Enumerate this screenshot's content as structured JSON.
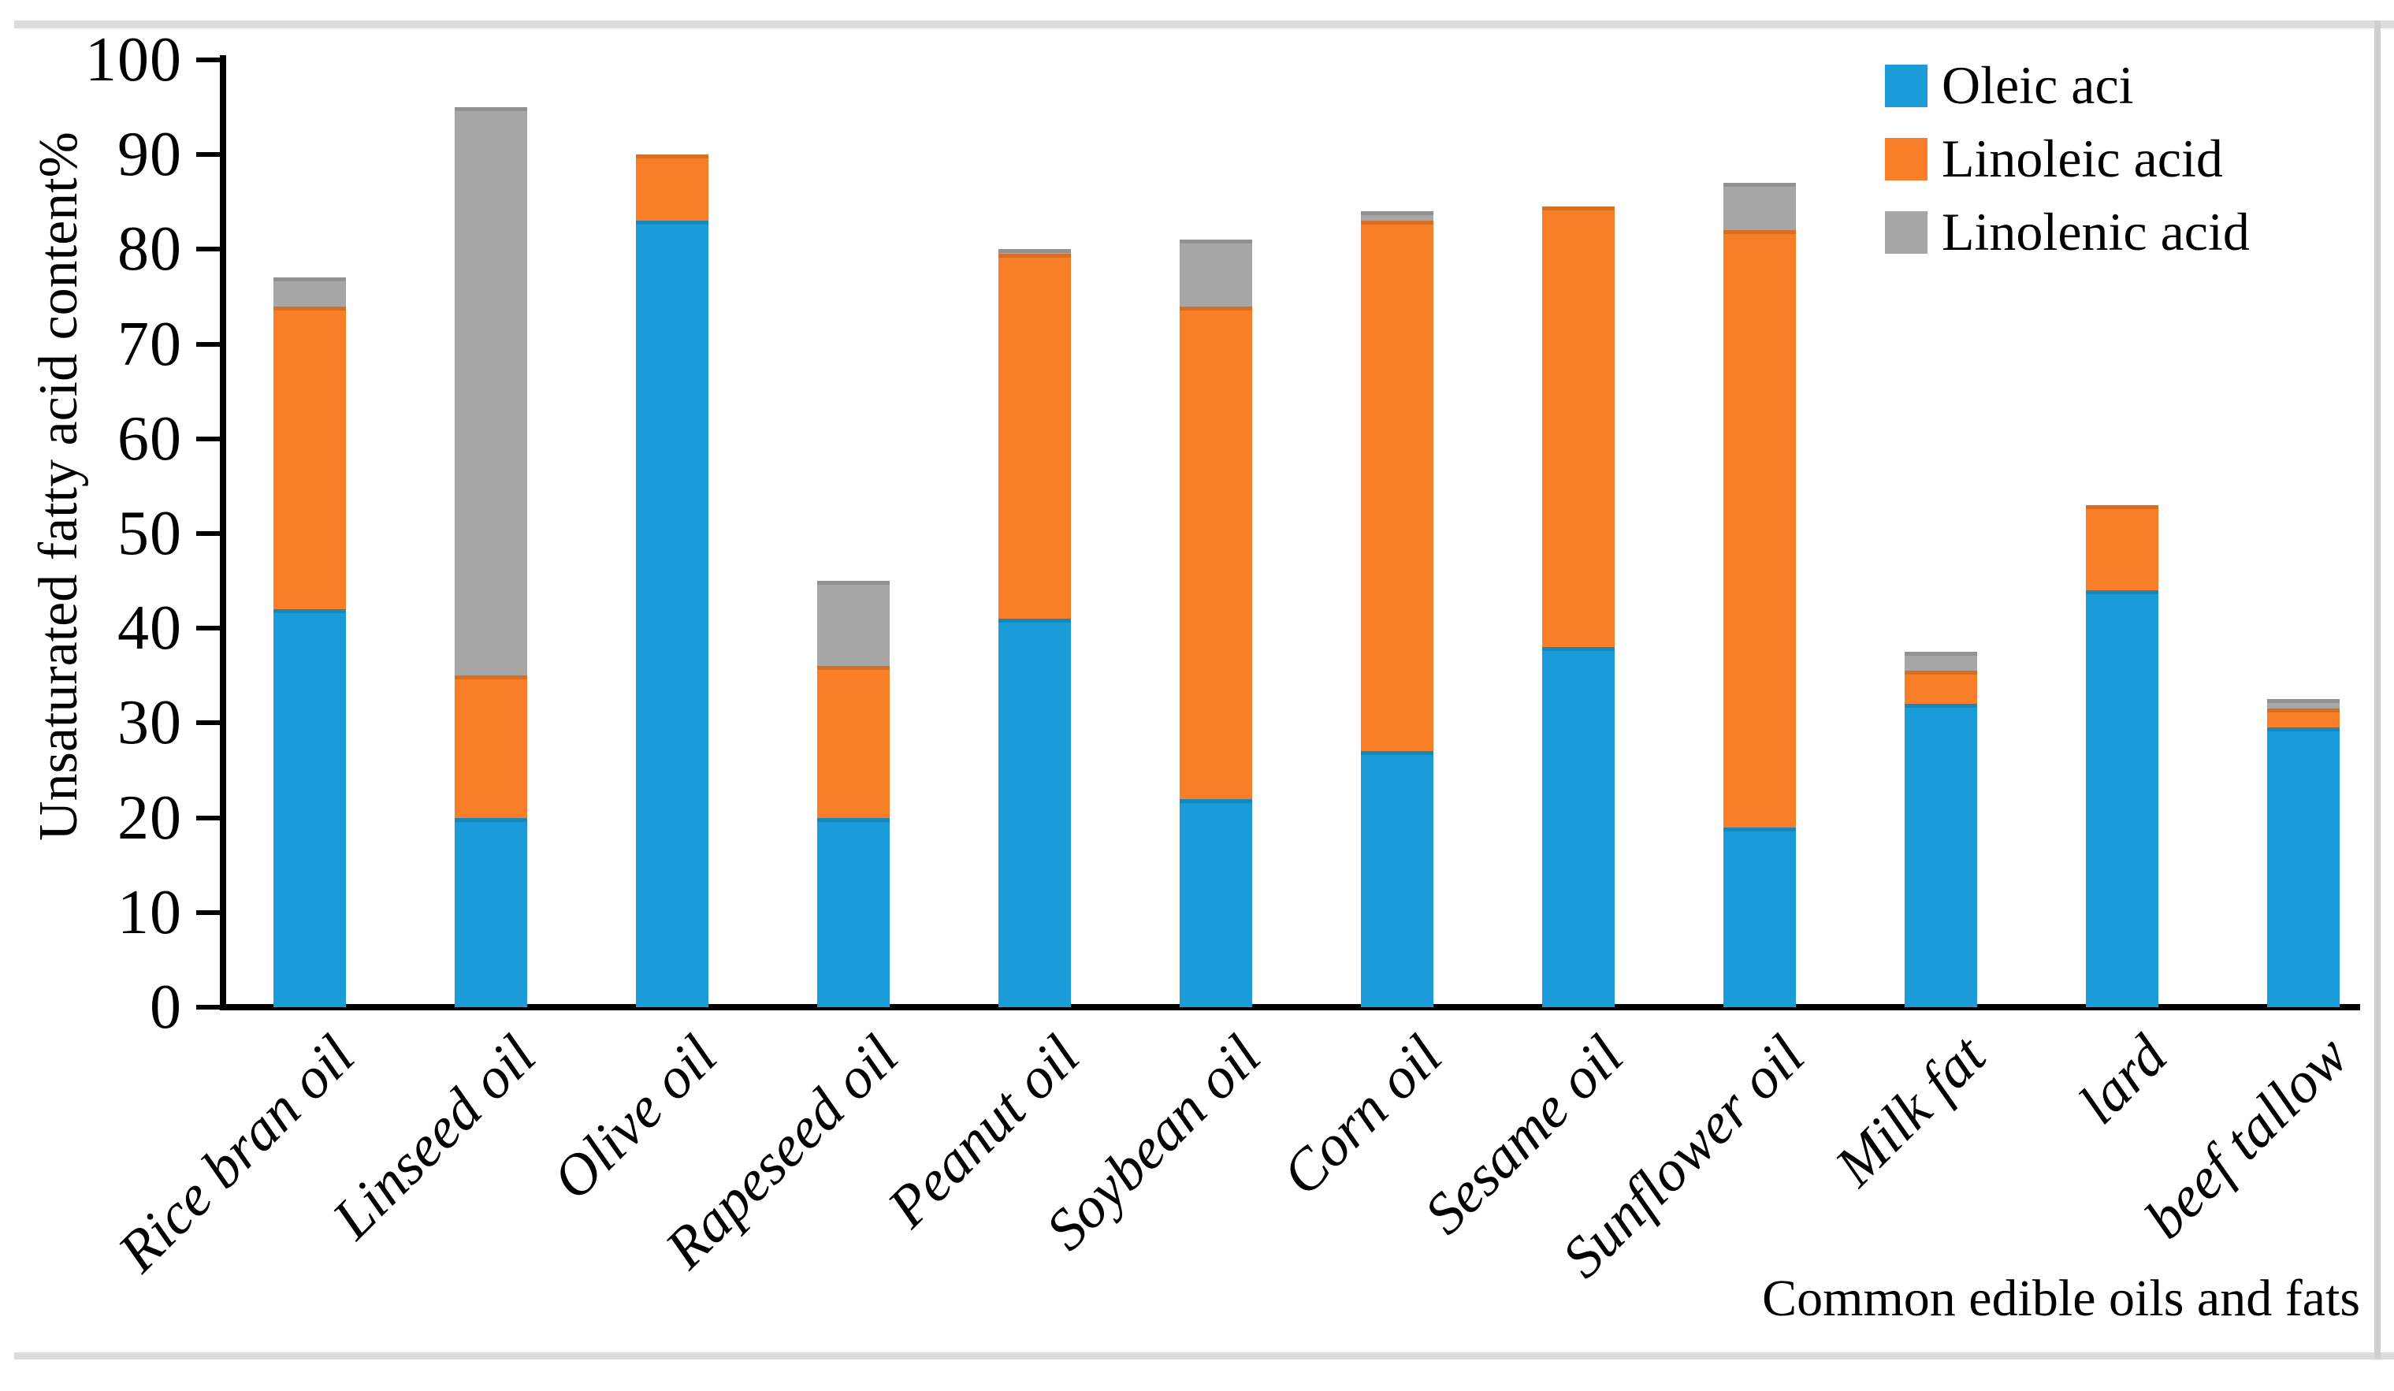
{
  "figure": {
    "y_axis_title": "Unsaturated fatty acid content%",
    "x_axis_title": "Common edible oils and fats"
  },
  "legend": {
    "position": "top-right",
    "items": [
      {
        "label": "Oleic aci",
        "color": "#1b9bd8"
      },
      {
        "label": "Linoleic acid",
        "color": "#f87e27"
      },
      {
        "label": "Linolenic acid",
        "color": "#a7a7a7"
      }
    ]
  },
  "chart_data": {
    "type": "bar",
    "stacked": true,
    "title": "",
    "xlabel": "Common edible oils and fats",
    "ylabel": "Unsaturated fatty acid content%",
    "ylim": [
      0,
      100
    ],
    "yticks": [
      0,
      10,
      20,
      30,
      40,
      50,
      60,
      70,
      80,
      90,
      100
    ],
    "grid": false,
    "legend_position": "top-right",
    "categories": [
      "Rice bran oil",
      "Linseed oil",
      "Olive oil",
      "Rapeseed oil",
      "Peanut oil",
      "Soybean oil",
      "Corn oil",
      "Sesame oil",
      "Sunflower oil",
      "Milk fat",
      "lard",
      "beef tallow"
    ],
    "series": [
      {
        "name": "Oleic aci",
        "color": "#1b9bd8",
        "values": [
          42,
          20,
          83,
          20,
          41,
          22,
          27,
          38,
          19,
          32,
          44,
          29.5
        ]
      },
      {
        "name": "Linoleic acid",
        "color": "#f87e27",
        "values": [
          32,
          15,
          7,
          16,
          38.5,
          52,
          56,
          46.5,
          63,
          3.5,
          9,
          2
        ]
      },
      {
        "name": "Linolenic acid",
        "color": "#a7a7a7",
        "values": [
          3,
          60,
          0,
          9,
          0.5,
          7,
          1,
          0,
          5,
          2,
          0,
          1
        ]
      }
    ],
    "totals": [
      77,
      95,
      90,
      45,
      80,
      81,
      84,
      84.5,
      87,
      37.5,
      53,
      32.5
    ]
  },
  "frame": {
    "rule_color": "#dcdcdc"
  }
}
